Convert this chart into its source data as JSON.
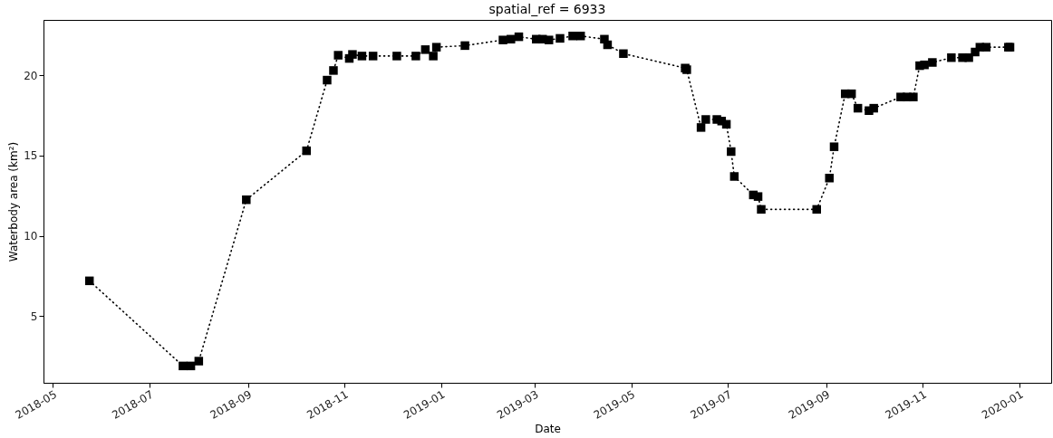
{
  "chart_data": {
    "type": "line",
    "title": "spatial_ref = 6933",
    "xlabel": "Date",
    "ylabel": "Waterbody area (km²)",
    "x": [
      "2018-05-24",
      "2018-07-22",
      "2018-07-27",
      "2018-08-01",
      "2018-08-31",
      "2018-10-08",
      "2018-10-21",
      "2018-10-25",
      "2018-10-28",
      "2018-11-04",
      "2018-11-06",
      "2018-11-12",
      "2018-11-19",
      "2018-12-04",
      "2018-12-16",
      "2018-12-22",
      "2018-12-27",
      "2018-12-29",
      "2019-01-16",
      "2019-02-09",
      "2019-02-14",
      "2019-02-19",
      "2019-03-02",
      "2019-03-06",
      "2019-03-10",
      "2019-03-17",
      "2019-03-25",
      "2019-03-30",
      "2019-04-14",
      "2019-04-16",
      "2019-04-26",
      "2019-06-04",
      "2019-06-05",
      "2019-06-14",
      "2019-06-17",
      "2019-06-24",
      "2019-06-27",
      "2019-06-30",
      "2019-07-03",
      "2019-07-05",
      "2019-07-17",
      "2019-07-20",
      "2019-07-22",
      "2019-08-26",
      "2019-09-03",
      "2019-09-06",
      "2019-09-13",
      "2019-09-17",
      "2019-09-21",
      "2019-09-28",
      "2019-10-01",
      "2019-10-18",
      "2019-10-22",
      "2019-10-26",
      "2019-10-30",
      "2019-11-02",
      "2019-11-07",
      "2019-11-19",
      "2019-11-26",
      "2019-11-30",
      "2019-12-04",
      "2019-12-07",
      "2019-12-11",
      "2019-12-25",
      "2019-12-26"
    ],
    "series": [
      {
        "color": "#000000",
        "values": [
          7.2,
          1.9,
          1.9,
          2.2,
          12.25,
          15.3,
          19.7,
          20.3,
          21.25,
          21.05,
          21.3,
          21.2,
          21.2,
          21.2,
          21.2,
          21.6,
          21.2,
          21.75,
          21.85,
          22.2,
          22.25,
          22.4,
          22.25,
          22.25,
          22.2,
          22.3,
          22.45,
          22.45,
          22.25,
          21.9,
          21.35,
          20.45,
          20.35,
          16.75,
          17.25,
          17.25,
          17.15,
          16.95,
          15.25,
          13.7,
          12.55,
          12.45,
          11.65,
          11.65,
          13.6,
          15.55,
          18.85,
          18.85,
          17.95,
          17.8,
          17.95,
          18.65,
          18.65,
          18.65,
          20.6,
          20.65,
          20.8,
          21.1,
          21.1,
          21.1,
          21.45,
          21.75,
          21.75,
          21.75,
          21.75
        ]
      }
    ],
    "xlim": [
      "2018-04-25",
      "2020-01-21"
    ],
    "xticks": [
      "2018-05",
      "2018-07",
      "2018-09",
      "2018-11",
      "2019-01",
      "2019-03",
      "2019-05",
      "2019-07",
      "2019-09",
      "2019-11",
      "2020-01"
    ],
    "ylim": [
      0.85,
      23.45
    ],
    "yticks": [
      5,
      10,
      15,
      20
    ],
    "grid": false,
    "marker": "square",
    "line_style": "dotted"
  }
}
